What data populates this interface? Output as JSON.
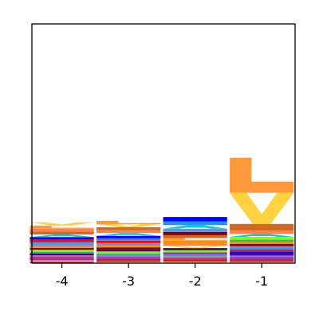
{
  "chart_data": {
    "type": "sequence-logo",
    "title": "",
    "xlabel": "",
    "ylabel": "",
    "ylim": [
      0,
      1
    ],
    "grid": false,
    "legend": "none",
    "positions": [
      {
        "x": -4,
        "label": "-4",
        "stack": [
          {
            "letter": "M",
            "color": "#b22222",
            "height": 0.006
          },
          {
            "letter": "W",
            "color": "#ffa07a",
            "height": 0.006
          },
          {
            "letter": "H",
            "color": "#8a2be2",
            "height": 0.007
          },
          {
            "letter": "C",
            "color": "#dc143c",
            "height": 0.007
          },
          {
            "letter": "N",
            "color": "#9370db",
            "height": 0.007
          },
          {
            "letter": "Q",
            "color": "#4b0082",
            "height": 0.007
          },
          {
            "letter": "S",
            "color": "#3cb371",
            "height": 0.008
          },
          {
            "letter": "T",
            "color": "#7fff00",
            "height": 0.008
          },
          {
            "letter": "G",
            "color": "#8b0000",
            "height": 0.008
          },
          {
            "letter": "P",
            "color": "#ff8c00",
            "height": 0.008
          },
          {
            "letter": "D",
            "color": "#6495ed",
            "height": 0.009
          },
          {
            "letter": "E",
            "color": "#1e90ff",
            "height": 0.009
          },
          {
            "letter": "R",
            "color": "#ff0000",
            "height": 0.009
          },
          {
            "letter": "K",
            "color": "#0000ff",
            "height": 0.01
          },
          {
            "letter": "A",
            "color": "#00ced1",
            "height": 0.011
          },
          {
            "letter": "F",
            "color": "#d2691e",
            "height": 0.012
          },
          {
            "letter": "I",
            "color": "#ff7f50",
            "height": 0.012
          },
          {
            "letter": "L",
            "color": "#ff9a3c",
            "height": 0.013
          },
          {
            "letter": "V",
            "color": "#ffd23f",
            "height": 0.014
          }
        ]
      },
      {
        "x": -3,
        "label": "-3",
        "stack": [
          {
            "letter": "W",
            "color": "#ffa07a",
            "height": 0.006
          },
          {
            "letter": "M",
            "color": "#b22222",
            "height": 0.006
          },
          {
            "letter": "C",
            "color": "#dc143c",
            "height": 0.007
          },
          {
            "letter": "H",
            "color": "#8a2be2",
            "height": 0.007
          },
          {
            "letter": "N",
            "color": "#9370db",
            "height": 0.007
          },
          {
            "letter": "S",
            "color": "#3cb371",
            "height": 0.008
          },
          {
            "letter": "T",
            "color": "#7fff00",
            "height": 0.008
          },
          {
            "letter": "Q",
            "color": "#4b0082",
            "height": 0.008
          },
          {
            "letter": "G",
            "color": "#8b0000",
            "height": 0.009
          },
          {
            "letter": "P",
            "color": "#ff8c00",
            "height": 0.009
          },
          {
            "letter": "D",
            "color": "#6495ed",
            "height": 0.009
          },
          {
            "letter": "R",
            "color": "#ff0000",
            "height": 0.01
          },
          {
            "letter": "E",
            "color": "#1e90ff",
            "height": 0.01
          },
          {
            "letter": "K",
            "color": "#0000ff",
            "height": 0.01
          },
          {
            "letter": "A",
            "color": "#00ced1",
            "height": 0.012
          },
          {
            "letter": "I",
            "color": "#ff7f50",
            "height": 0.012
          },
          {
            "letter": "F",
            "color": "#d2691e",
            "height": 0.012
          },
          {
            "letter": "V",
            "color": "#ffd23f",
            "height": 0.013
          },
          {
            "letter": "L",
            "color": "#ff9a3c",
            "height": 0.014
          }
        ]
      },
      {
        "x": -2,
        "label": "-2",
        "stack": [
          {
            "letter": "W",
            "color": "#ffa07a",
            "height": 0.007
          },
          {
            "letter": "M",
            "color": "#b22222",
            "height": 0.007
          },
          {
            "letter": "C",
            "color": "#dc143c",
            "height": 0.007
          },
          {
            "letter": "N",
            "color": "#9370db",
            "height": 0.008
          },
          {
            "letter": "S",
            "color": "#3cb371",
            "height": 0.008
          },
          {
            "letter": "H",
            "color": "#8a2be2",
            "height": 0.008
          },
          {
            "letter": "T",
            "color": "#7fff00",
            "height": 0.009
          },
          {
            "letter": "Q",
            "color": "#4b0082",
            "height": 0.009
          },
          {
            "letter": "V",
            "color": "#ffd23f",
            "height": 0.01
          },
          {
            "letter": "I",
            "color": "#ff7f50",
            "height": 0.01
          },
          {
            "letter": "P",
            "color": "#ff8c00",
            "height": 0.011
          },
          {
            "letter": "L",
            "color": "#ff9a3c",
            "height": 0.011
          },
          {
            "letter": "F",
            "color": "#d2691e",
            "height": 0.012
          },
          {
            "letter": "G",
            "color": "#8b0000",
            "height": 0.014
          },
          {
            "letter": "D",
            "color": "#6495ed",
            "height": 0.013
          },
          {
            "letter": "A",
            "color": "#00ced1",
            "height": 0.015
          },
          {
            "letter": "E",
            "color": "#1e90ff",
            "height": 0.016
          },
          {
            "letter": "K",
            "color": "#0000ff",
            "height": 0.018
          }
        ]
      },
      {
        "x": -1,
        "label": "-1",
        "stack": [
          {
            "letter": "W",
            "color": "#ffa07a",
            "height": 0.006
          },
          {
            "letter": "M",
            "color": "#b22222",
            "height": 0.006
          },
          {
            "letter": "C",
            "color": "#dc143c",
            "height": 0.006
          },
          {
            "letter": "H",
            "color": "#8a2be2",
            "height": 0.007
          },
          {
            "letter": "N",
            "color": "#9370db",
            "height": 0.007
          },
          {
            "letter": "Q",
            "color": "#4b0082",
            "height": 0.007
          },
          {
            "letter": "K",
            "color": "#0000ff",
            "height": 0.008
          },
          {
            "letter": "R",
            "color": "#ff0000",
            "height": 0.008
          },
          {
            "letter": "E",
            "color": "#1e90ff",
            "height": 0.008
          },
          {
            "letter": "D",
            "color": "#6495ed",
            "height": 0.008
          },
          {
            "letter": "G",
            "color": "#8b0000",
            "height": 0.009
          },
          {
            "letter": "P",
            "color": "#ff8c00",
            "height": 0.009
          },
          {
            "letter": "S",
            "color": "#3cb371",
            "height": 0.009
          },
          {
            "letter": "T",
            "color": "#7fff00",
            "height": 0.012
          },
          {
            "letter": "A",
            "color": "#00ced1",
            "height": 0.012
          },
          {
            "letter": "I",
            "color": "#ff7f50",
            "height": 0.014
          },
          {
            "letter": "F",
            "color": "#d2691e",
            "height": 0.028
          },
          {
            "letter": "V",
            "color": "#ffd23f",
            "height": 0.13
          },
          {
            "letter": "L",
            "color": "#ff9a3c",
            "height": 0.147
          }
        ]
      }
    ]
  }
}
